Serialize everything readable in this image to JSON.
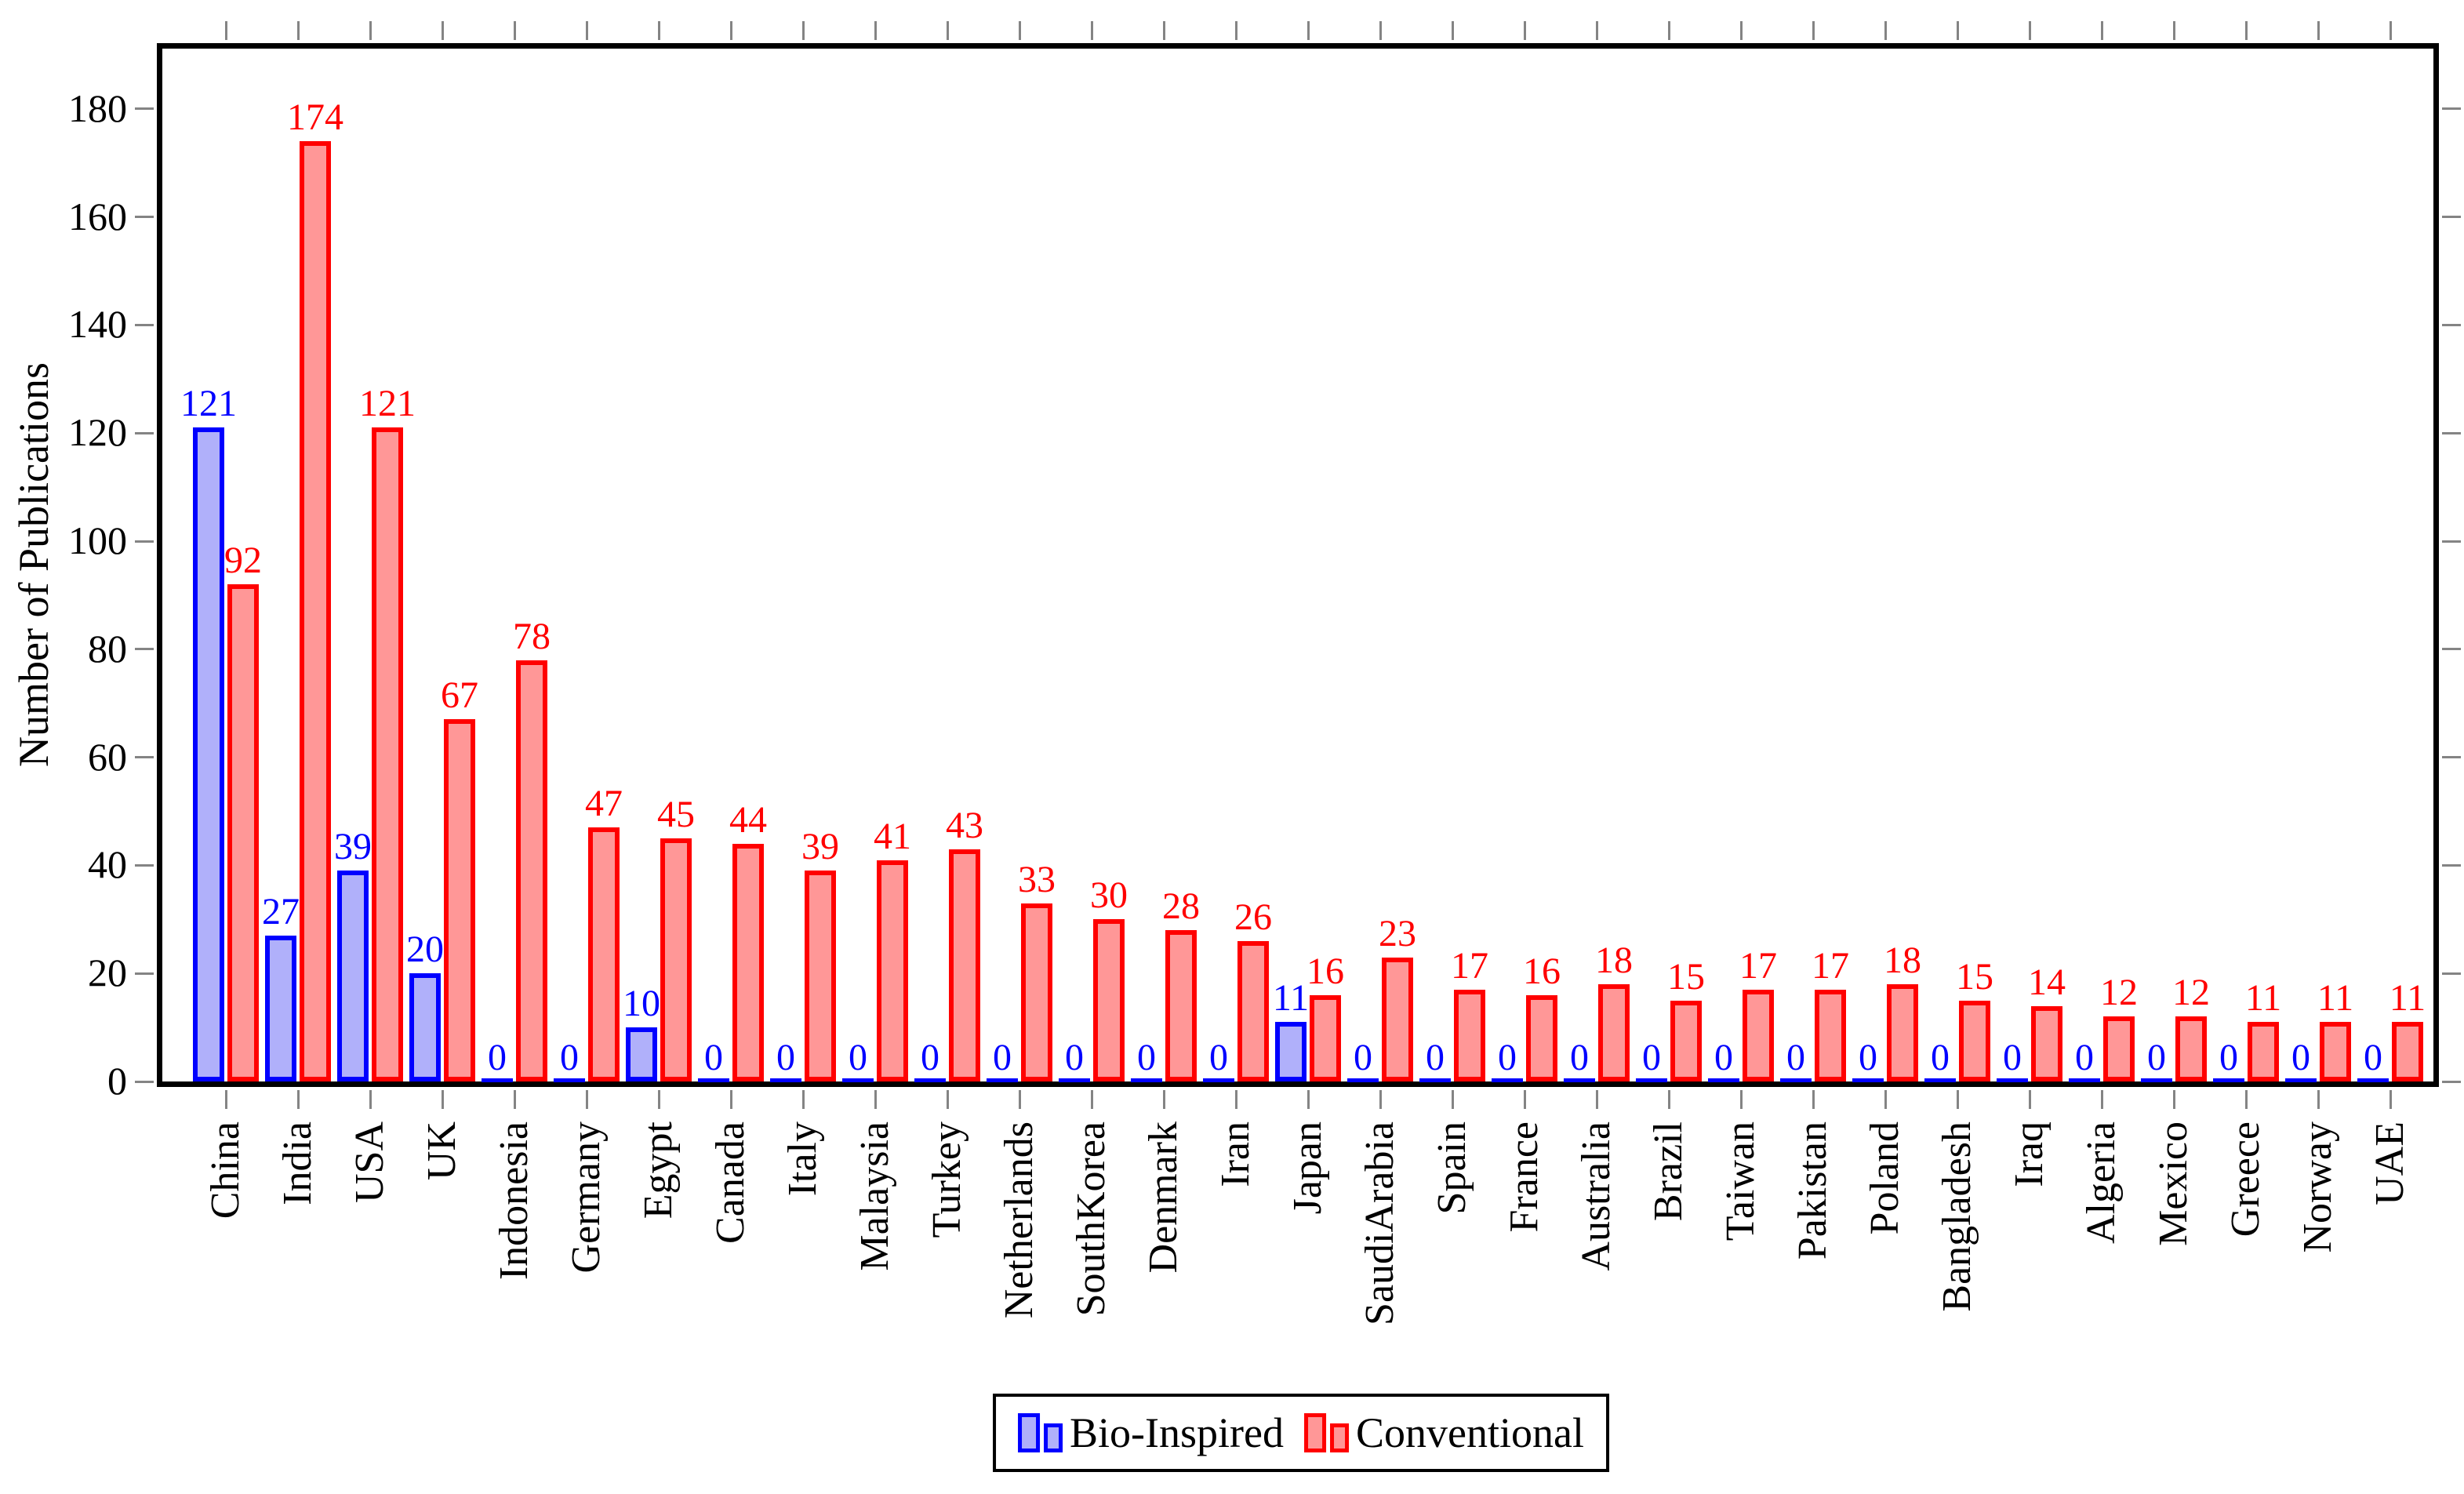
{
  "chart_data": {
    "type": "bar",
    "title": "",
    "xlabel": "",
    "ylabel": "Number of Publications",
    "ylim": [
      0,
      192
    ],
    "yticks": [
      0,
      20,
      40,
      60,
      80,
      100,
      120,
      140,
      160,
      180
    ],
    "grid": false,
    "legend_position": "bottom",
    "categories": [
      "China",
      "India",
      "USA",
      "UK",
      "Indonesia",
      "Germany",
      "Egypt",
      "Canada",
      "Italy",
      "Malaysia",
      "Turkey",
      "Netherlands",
      "SouthKorea",
      "Denmark",
      "Iran",
      "Japan",
      "SaudiArabia",
      "Spain",
      "France",
      "Australia",
      "Brazil",
      "Taiwan",
      "Pakistan",
      "Poland",
      "Bangladesh",
      "Iraq",
      "Algeria",
      "Mexico",
      "Greece",
      "Norway",
      "UAE"
    ],
    "series": [
      {
        "name": "Bio-Inspired",
        "fill": "#b0b0fa",
        "border": "#0000ff",
        "label_color": "#0000ff",
        "values": [
          121,
          27,
          39,
          20,
          0,
          0,
          10,
          0,
          0,
          0,
          0,
          0,
          0,
          0,
          0,
          11,
          0,
          0,
          0,
          0,
          0,
          0,
          0,
          0,
          0,
          0,
          0,
          0,
          0,
          0,
          0
        ]
      },
      {
        "name": "Conventional",
        "fill": "#ff9797",
        "border": "#ff0000",
        "label_color": "#ff0000",
        "values": [
          92,
          174,
          121,
          67,
          78,
          47,
          45,
          44,
          39,
          41,
          43,
          33,
          30,
          28,
          26,
          16,
          23,
          17,
          16,
          18,
          15,
          17,
          17,
          18,
          15,
          14,
          12,
          12,
          11,
          11,
          11
        ]
      }
    ],
    "colors": {
      "axis": "#000000",
      "tick": "#848484",
      "text": "#000000",
      "background": "#ffffff"
    }
  }
}
